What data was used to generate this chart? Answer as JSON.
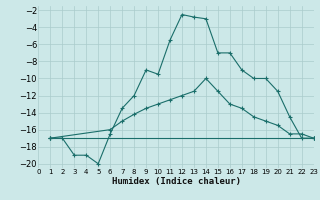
{
  "xlabel": "Humidex (Indice chaleur)",
  "background_color": "#cce8e8",
  "grid_color": "#aacccc",
  "line_color": "#1a6e6a",
  "xlim": [
    0,
    23
  ],
  "ylim": [
    -20.5,
    -1.5
  ],
  "xticks": [
    0,
    1,
    2,
    3,
    4,
    5,
    6,
    7,
    8,
    9,
    10,
    11,
    12,
    13,
    14,
    15,
    16,
    17,
    18,
    19,
    20,
    21,
    22,
    23
  ],
  "yticks": [
    -2,
    -4,
    -6,
    -8,
    -10,
    -12,
    -14,
    -16,
    -18,
    -20
  ],
  "series": [
    {
      "x": [
        1,
        2,
        3,
        4,
        5,
        6,
        7,
        8,
        9,
        10,
        11,
        12,
        13,
        14,
        15,
        16,
        17,
        18,
        19,
        20,
        21,
        22,
        23
      ],
      "y": [
        -17,
        -17,
        -19,
        -19,
        -20,
        -16.5,
        -13.5,
        -12,
        -9,
        -9.5,
        -5.5,
        -2.5,
        -2.8,
        -3,
        -7,
        -7,
        -9,
        -10,
        -10,
        -11.5,
        -14.5,
        -17,
        -17
      ]
    },
    {
      "x": [
        1,
        6,
        7,
        8,
        9,
        10,
        11,
        12,
        13,
        14,
        15,
        16,
        17,
        18,
        19,
        20,
        21,
        22,
        23
      ],
      "y": [
        -17,
        -16,
        -15,
        -14.2,
        -13.5,
        -13,
        -12.5,
        -12,
        -11.5,
        -10,
        -11.5,
        -13,
        -13.5,
        -14.5,
        -15,
        -15.5,
        -16.5,
        -16.5,
        -17
      ]
    },
    {
      "x": [
        1,
        23
      ],
      "y": [
        -17,
        -17
      ]
    }
  ]
}
